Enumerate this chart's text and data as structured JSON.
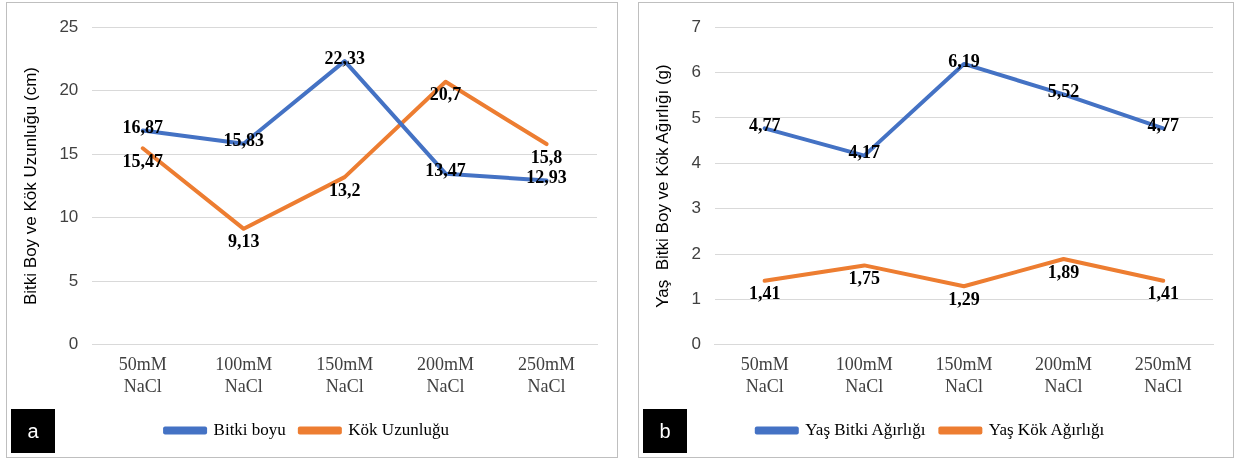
{
  "chart_data": [
    {
      "type": "line",
      "ylabel": "Bitki Boy ve Kök Uzunluğu (cm)",
      "categories": [
        "50mM NaCl",
        "100mM NaCl",
        "150mM NaCl",
        "200mM NaCl",
        "250mM NaCl"
      ],
      "ylim": [
        0,
        25
      ],
      "yticks": [
        0,
        5,
        10,
        15,
        20,
        25
      ],
      "grid": "y",
      "legend": "bottom",
      "marker": "none",
      "line_style": "solid",
      "annotations": [
        "a"
      ],
      "series": [
        {
          "name": "Bitki boyu",
          "color": "#4472c4",
          "values": [
            16.87,
            15.83,
            22.33,
            13.47,
            12.93
          ],
          "value_labels": [
            "16,87",
            "15,83",
            "22,33",
            "13,47",
            "12,93"
          ]
        },
        {
          "name": "Kök Uzunluğu",
          "color": "#ed7d31",
          "values": [
            15.47,
            9.13,
            13.2,
            20.7,
            15.8
          ],
          "value_labels": [
            "15,47",
            "9,13",
            "13,2",
            "20,7",
            "15,8"
          ]
        }
      ]
    },
    {
      "type": "line",
      "ylabel": "Yaş  Bitki Boy ve Kök Ağırlığı (g)",
      "categories": [
        "50mM NaCl",
        "100mM NaCl",
        "150mM NaCl",
        "200mM NaCl",
        "250mM NaCl"
      ],
      "ylim": [
        0,
        7
      ],
      "yticks": [
        0,
        1,
        2,
        3,
        4,
        5,
        6,
        7
      ],
      "grid": "y",
      "legend": "bottom",
      "marker": "none",
      "line_style": "solid",
      "annotations": [
        "b"
      ],
      "series": [
        {
          "name": "Yaş Bitki Ağırlığı",
          "color": "#4472c4",
          "values": [
            4.77,
            4.17,
            6.19,
            5.52,
            4.77
          ],
          "value_labels": [
            "4,77",
            "4,17",
            "6,19",
            "5,52",
            "4,77"
          ]
        },
        {
          "name": "Yaş Kök Ağırlığı",
          "color": "#ed7d31",
          "values": [
            1.41,
            1.75,
            1.29,
            1.89,
            1.41
          ],
          "value_labels": [
            "1,41",
            "1,75",
            "1,29",
            "1,89",
            "1,41"
          ]
        }
      ]
    }
  ]
}
